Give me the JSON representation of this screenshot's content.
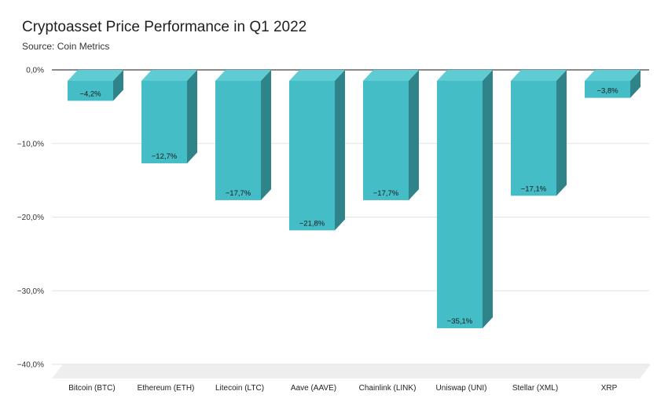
{
  "chart_data": {
    "type": "bar",
    "title": "Cryptoasset Price Performance in Q1 2022",
    "subtitle": "Source: Coin Metrics",
    "categories": [
      "Bitcoin (BTC)",
      "Ethereum (ETH)",
      "Litecoin (LTC)",
      "Aave (AAVE)",
      "Chainlink (LINK)",
      "Uniswap (UNI)",
      "Stellar (XML)",
      "XRP"
    ],
    "values": [
      -4.2,
      -12.7,
      -17.7,
      -21.8,
      -17.7,
      -35.1,
      -17.1,
      -3.8
    ],
    "data_labels": [
      "−4,2%",
      "−12,7%",
      "−17,7%",
      "−21,8%",
      "−17,7%",
      "−35,1%",
      "−17,1%",
      "−3,8%"
    ],
    "ylim": [
      -40,
      0
    ],
    "yticks": [
      0,
      -10,
      -20,
      -30,
      -40
    ],
    "ytick_labels": [
      "0,0%",
      "−10,0%",
      "−20,0%",
      "−30,0%",
      "−40,0%"
    ],
    "xlabel": "",
    "ylabel": "",
    "grid": true,
    "style": "3d-bar",
    "colors": {
      "bar_front": "#45bdc6",
      "bar_top": "#5fcbd2",
      "bar_side": "#2e8488",
      "floor": "#eeeeee",
      "grid": "#e2e2e2",
      "zero_line": "#444444"
    }
  }
}
